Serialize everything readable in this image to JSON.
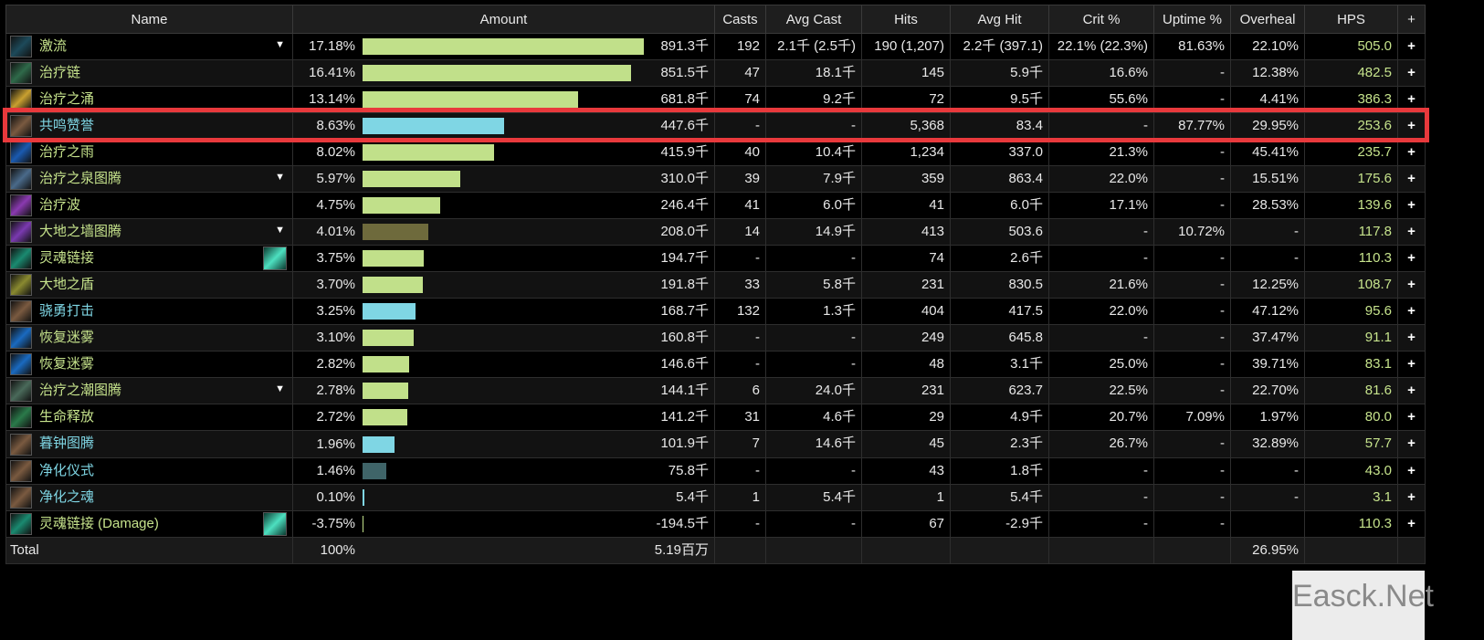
{
  "columns": [
    "Name",
    "Amount",
    "Casts",
    "Avg Cast",
    "Hits",
    "Avg Hit",
    "Crit %",
    "Uptime %",
    "Overheal",
    "HPS",
    "+"
  ],
  "colors": {
    "green": "#c1e08a",
    "cyan": "#7fd6e4",
    "olive": "#6e6a3c",
    "teal": "#3f6468",
    "name_green": "#c6e38c",
    "name_cyan": "#7fd6e4",
    "highlight": "#e8393c"
  },
  "rows": [
    {
      "name": "激流",
      "color": "green",
      "icon": "riptide-icon",
      "ic": "#1d4a5a",
      "caret": true,
      "pct": "17.18%",
      "p": 17.18,
      "bar": "green",
      "amount": "891.3千",
      "casts": "192",
      "avg_cast": "2.1千 (2.5千)",
      "hits": "190 (1,207)",
      "avg_hit": "2.2千 (397.1)",
      "crit": "22.1% (22.3%)",
      "uptime": "81.63%",
      "overheal": "22.10%",
      "hps": "505.0"
    },
    {
      "name": "治疗链",
      "color": "green",
      "icon": "chain-heal-icon",
      "ic": "#2f6a4a",
      "pct": "16.41%",
      "p": 16.41,
      "bar": "green",
      "amount": "851.5千",
      "casts": "47",
      "avg_cast": "18.1千",
      "hits": "145",
      "avg_hit": "5.9千",
      "crit": "16.6%",
      "uptime": "-",
      "overheal": "12.38%",
      "hps": "482.5"
    },
    {
      "name": "治疗之涌",
      "color": "green",
      "icon": "healing-surge-icon",
      "ic": "#c9a030",
      "pct": "13.14%",
      "p": 13.14,
      "bar": "green",
      "amount": "681.8千",
      "casts": "74",
      "avg_cast": "9.2千",
      "hits": "72",
      "avg_hit": "9.5千",
      "crit": "55.6%",
      "uptime": "-",
      "overheal": "4.41%",
      "hps": "386.3"
    },
    {
      "name": "共鸣赞誉",
      "color": "cyan",
      "icon": "resonant-praise-icon",
      "ic": "#7a5a40",
      "pct": "8.63%",
      "p": 8.63,
      "bar": "cyan",
      "amount": "447.6千",
      "casts": "-",
      "avg_cast": "-",
      "hits": "5,368",
      "avg_hit": "83.4",
      "crit": "-",
      "uptime": "87.77%",
      "overheal": "29.95%",
      "hps": "253.6"
    },
    {
      "name": "治疗之雨",
      "color": "green",
      "icon": "healing-rain-icon",
      "ic": "#1a5ab0",
      "pct": "8.02%",
      "p": 8.02,
      "bar": "green",
      "amount": "415.9千",
      "casts": "40",
      "avg_cast": "10.4千",
      "hits": "1,234",
      "avg_hit": "337.0",
      "crit": "21.3%",
      "uptime": "-",
      "overheal": "45.41%",
      "hps": "235.7"
    },
    {
      "name": "治疗之泉图腾",
      "color": "green",
      "icon": "healing-stream-totem-icon",
      "ic": "#4a6a8a",
      "caret": true,
      "pct": "5.97%",
      "p": 5.97,
      "bar": "green",
      "amount": "310.0千",
      "casts": "39",
      "avg_cast": "7.9千",
      "hits": "359",
      "avg_hit": "863.4",
      "crit": "22.0%",
      "uptime": "-",
      "overheal": "15.51%",
      "hps": "175.6"
    },
    {
      "name": "治疗波",
      "color": "green",
      "icon": "healing-wave-icon",
      "ic": "#8a3ab0",
      "pct": "4.75%",
      "p": 4.75,
      "bar": "green",
      "amount": "246.4千",
      "casts": "41",
      "avg_cast": "6.0千",
      "hits": "41",
      "avg_hit": "6.0千",
      "crit": "17.1%",
      "uptime": "-",
      "overheal": "28.53%",
      "hps": "139.6"
    },
    {
      "name": "大地之墙图腾",
      "color": "green",
      "icon": "earthen-wall-totem-icon",
      "ic": "#7a3ab0",
      "caret": true,
      "pct": "4.01%",
      "p": 4.01,
      "bar": "olive",
      "amount": "208.0千",
      "casts": "14",
      "avg_cast": "14.9千",
      "hits": "413",
      "avg_hit": "503.6",
      "crit": "-",
      "uptime": "10.72%",
      "overheal": "-",
      "hps": "117.8"
    },
    {
      "name": "灵魂链接",
      "color": "green",
      "icon": "spirit-link-icon",
      "ic": "#1a8a70",
      "side": true,
      "pct": "3.75%",
      "p": 3.75,
      "bar": "green",
      "amount": "194.7千",
      "casts": "-",
      "avg_cast": "-",
      "hits": "74",
      "avg_hit": "2.6千",
      "crit": "-",
      "uptime": "-",
      "overheal": "-",
      "hps": "110.3"
    },
    {
      "name": "大地之盾",
      "color": "green",
      "icon": "earth-shield-icon",
      "ic": "#8a8a30",
      "pct": "3.70%",
      "p": 3.7,
      "bar": "green",
      "amount": "191.8千",
      "casts": "33",
      "avg_cast": "5.8千",
      "hits": "231",
      "avg_hit": "830.5",
      "crit": "21.6%",
      "uptime": "-",
      "overheal": "12.25%",
      "hps": "108.7"
    },
    {
      "name": "骁勇打击",
      "color": "cyan",
      "icon": "valorous-strike-icon",
      "ic": "#7a5a40",
      "pct": "3.25%",
      "p": 3.25,
      "bar": "cyan",
      "amount": "168.7千",
      "casts": "132",
      "avg_cast": "1.3千",
      "hits": "404",
      "avg_hit": "417.5",
      "crit": "22.0%",
      "uptime": "-",
      "overheal": "47.12%",
      "hps": "95.6"
    },
    {
      "name": "恢复迷雾",
      "color": "green",
      "icon": "renewing-mist-icon",
      "ic": "#1a6ac0",
      "pct": "3.10%",
      "p": 3.1,
      "bar": "green",
      "amount": "160.8千",
      "casts": "-",
      "avg_cast": "-",
      "hits": "249",
      "avg_hit": "645.8",
      "crit": "-",
      "uptime": "-",
      "overheal": "37.47%",
      "hps": "91.1"
    },
    {
      "name": "恢复迷雾",
      "color": "green",
      "icon": "renewing-mist-icon",
      "ic": "#1a6ac0",
      "pct": "2.82%",
      "p": 2.82,
      "bar": "green",
      "amount": "146.6千",
      "casts": "-",
      "avg_cast": "-",
      "hits": "48",
      "avg_hit": "3.1千",
      "crit": "25.0%",
      "uptime": "-",
      "overheal": "39.71%",
      "hps": "83.1"
    },
    {
      "name": "治疗之潮图腾",
      "color": "green",
      "icon": "healing-tide-totem-icon",
      "ic": "#4a6a5a",
      "caret": true,
      "pct": "2.78%",
      "p": 2.78,
      "bar": "green",
      "amount": "144.1千",
      "casts": "6",
      "avg_cast": "24.0千",
      "hits": "231",
      "avg_hit": "623.7",
      "crit": "22.5%",
      "uptime": "-",
      "overheal": "22.70%",
      "hps": "81.6"
    },
    {
      "name": "生命释放",
      "color": "green",
      "icon": "unleash-life-icon",
      "ic": "#2a7a4a",
      "pct": "2.72%",
      "p": 2.72,
      "bar": "green",
      "amount": "141.2千",
      "casts": "31",
      "avg_cast": "4.6千",
      "hits": "29",
      "avg_hit": "4.9千",
      "crit": "20.7%",
      "uptime": "7.09%",
      "overheal": "1.97%",
      "hps": "80.0"
    },
    {
      "name": "暮钟图腾",
      "color": "cyan",
      "icon": "vesper-totem-icon",
      "ic": "#7a5a40",
      "pct": "1.96%",
      "p": 1.96,
      "bar": "cyan",
      "amount": "101.9千",
      "casts": "7",
      "avg_cast": "14.6千",
      "hits": "45",
      "avg_hit": "2.3千",
      "crit": "26.7%",
      "uptime": "-",
      "overheal": "32.89%",
      "hps": "57.7"
    },
    {
      "name": "净化仪式",
      "color": "cyan",
      "icon": "ritual-icon",
      "ic": "#7a5a40",
      "pct": "1.46%",
      "p": 1.46,
      "bar": "teal",
      "amount": "75.8千",
      "casts": "-",
      "avg_cast": "-",
      "hits": "43",
      "avg_hit": "1.8千",
      "crit": "-",
      "uptime": "-",
      "overheal": "-",
      "hps": "43.0"
    },
    {
      "name": "净化之魂",
      "color": "cyan",
      "icon": "purified-soul-icon",
      "ic": "#7a5a40",
      "pct": "0.10%",
      "p": 0.1,
      "bar": "cyan",
      "amount": "5.4千",
      "casts": "1",
      "avg_cast": "5.4千",
      "hits": "1",
      "avg_hit": "5.4千",
      "crit": "-",
      "uptime": "-",
      "overheal": "-",
      "hps": "3.1"
    },
    {
      "name": "灵魂链接 (Damage)",
      "color": "green",
      "icon": "spirit-link-icon",
      "ic": "#1a8a70",
      "side": true,
      "pct": "-3.75%",
      "p": 0,
      "bar": "green",
      "amount": "-194.5千",
      "casts": "-",
      "avg_cast": "-",
      "hits": "67",
      "avg_hit": "-2.9千",
      "crit": "-",
      "uptime": "-",
      "overheal": "",
      "hps": "110.3"
    }
  ],
  "total": {
    "label": "Total",
    "pct": "100%",
    "amount": "5.19百万",
    "overheal": "26.95%"
  },
  "watermark": "Easck.Net"
}
